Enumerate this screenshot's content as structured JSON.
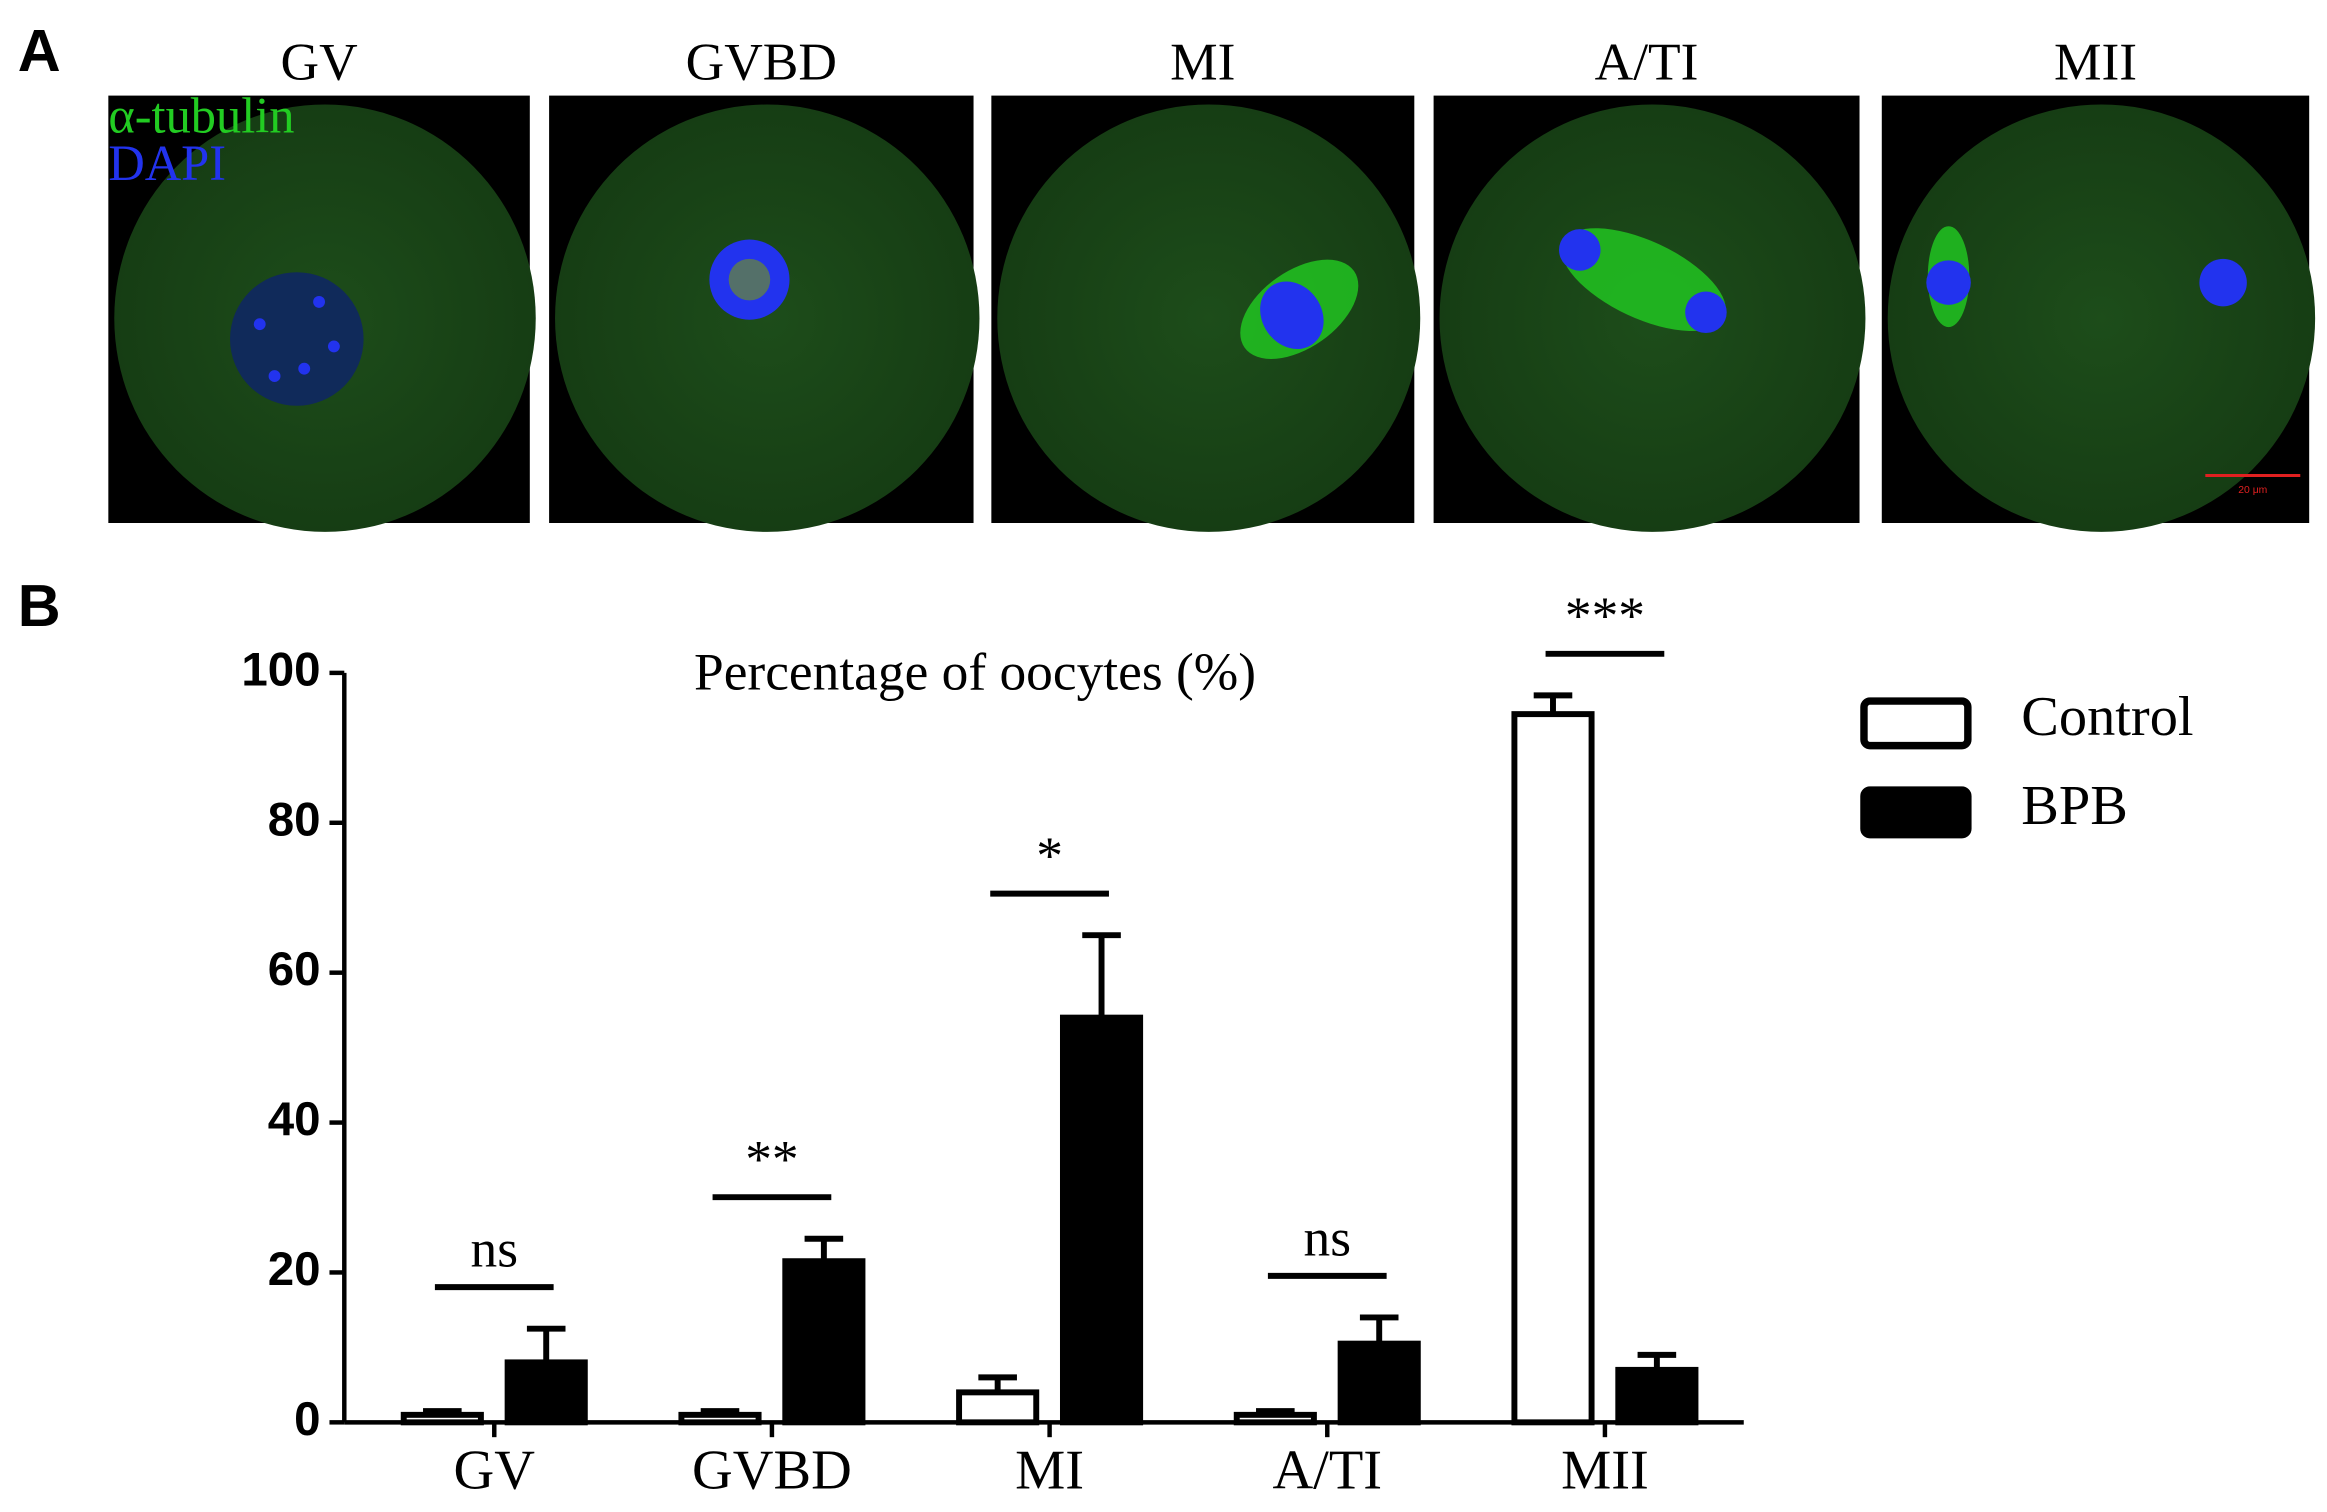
{
  "panel_a": {
    "label": "A",
    "stages": [
      "GV",
      "GVBD",
      "MI",
      "A/TI",
      "MII"
    ],
    "channels": [
      {
        "name": "α-tubulin",
        "color": "#22cc22"
      },
      {
        "name": "DAPI",
        "color": "#2233ee"
      }
    ],
    "scale_bar": "20 μm"
  },
  "chart_data": {
    "type": "bar",
    "panel_label": "B",
    "title": "Percentage of oocytes (%)",
    "categories": [
      "GV",
      "GVBD",
      "MI",
      "A/TI",
      "MII"
    ],
    "series": [
      {
        "name": "Control",
        "color": "#ffffff",
        "values": [
          1,
          1,
          4,
          1,
          94.5
        ],
        "errors": [
          0.5,
          0.5,
          2,
          0.5,
          2.5
        ]
      },
      {
        "name": "BPB",
        "color": "#000000",
        "values": [
          8,
          21.5,
          54,
          10.5,
          7
        ],
        "errors": [
          4.5,
          3,
          11,
          3.5,
          2
        ]
      }
    ],
    "significance": [
      "ns",
      "**",
      "*",
      "ns",
      "***"
    ],
    "ylim": [
      0,
      100
    ],
    "yticks": [
      0,
      20,
      40,
      60,
      80,
      100
    ],
    "grid": false,
    "legend": "right"
  }
}
